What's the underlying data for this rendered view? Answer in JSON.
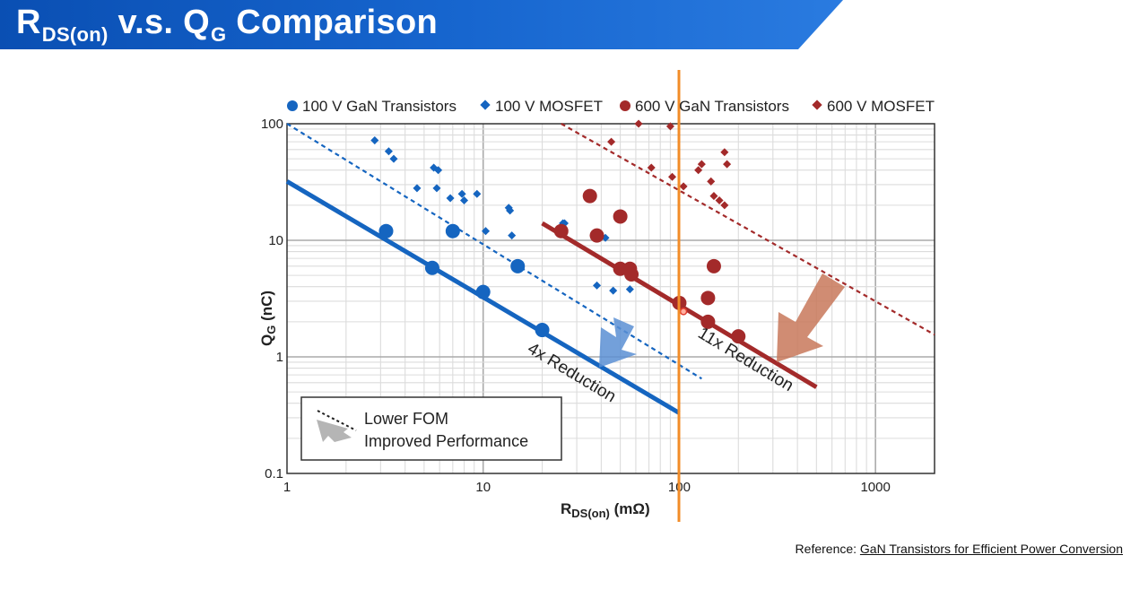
{
  "slide": {
    "title_main": "R",
    "title_sub": "DS(on)",
    "title_rest": " v.s. Q",
    "title_sub2": "G",
    "title_end": " Comparison"
  },
  "reference": {
    "prefix": "Reference: ",
    "link": "GaN Transistors for Efficient Power Conversion"
  },
  "colors": {
    "blue": "#1565c0",
    "red": "#a32a2a",
    "orange": "#f28c28",
    "blue_arrow": "#5b8fd4",
    "red_arrow": "#c8785a"
  },
  "chart_data": {
    "type": "scatter",
    "scale": "log-log",
    "xlim": [
      1,
      2000
    ],
    "ylim": [
      0.1,
      100
    ],
    "xlabel_main": "R",
    "xlabel_sub": "DS(on)",
    "xlabel_unit": " (mΩ)",
    "ylabel_main": "Q",
    "ylabel_sub": "G",
    "ylabel_unit": " (nC)",
    "x_ticks": [
      {
        "value": 1,
        "label": "1"
      },
      {
        "value": 10,
        "label": "10"
      },
      {
        "value": 100,
        "label": "100"
      },
      {
        "value": 1000,
        "label": "1000"
      }
    ],
    "y_ticks": [
      {
        "value": 0.1,
        "label": "0.1"
      },
      {
        "value": 1,
        "label": "1"
      },
      {
        "value": 10,
        "label": "10"
      },
      {
        "value": 100,
        "label": "100"
      }
    ],
    "series": [
      {
        "name": "100 V GaN Transistors",
        "marker": "circle",
        "color": "#1565c0",
        "points": [
          [
            3.2,
            12
          ],
          [
            5.5,
            5.8
          ],
          [
            7,
            12
          ],
          [
            10,
            3.6
          ],
          [
            15,
            6
          ],
          [
            20,
            1.7
          ]
        ]
      },
      {
        "name": "100 V MOSFET",
        "marker": "diamond",
        "color": "#1565c0",
        "points": [
          [
            2.8,
            72
          ],
          [
            3.3,
            58
          ],
          [
            3.5,
            50
          ],
          [
            4.6,
            28
          ],
          [
            5.6,
            42
          ],
          [
            5.9,
            40
          ],
          [
            5.8,
            28
          ],
          [
            6.8,
            23
          ],
          [
            7.8,
            25
          ],
          [
            8,
            22
          ],
          [
            9.3,
            25
          ],
          [
            10.3,
            12
          ],
          [
            13.5,
            19
          ],
          [
            13.7,
            18
          ],
          [
            14,
            11
          ],
          [
            25.5,
            14
          ],
          [
            26,
            14
          ],
          [
            38,
            4.1
          ],
          [
            42,
            10.5
          ],
          [
            46,
            3.7
          ],
          [
            56,
            3.8
          ]
        ]
      },
      {
        "name": "600 V GaN Transistors",
        "marker": "circle",
        "color": "#a32a2a",
        "points": [
          [
            25,
            12
          ],
          [
            35,
            24
          ],
          [
            38,
            11
          ],
          [
            50,
            16
          ],
          [
            50,
            5.7
          ],
          [
            56,
            5.7
          ],
          [
            57,
            5.1
          ],
          [
            100,
            2.9
          ],
          [
            140,
            3.2
          ],
          [
            140,
            2
          ],
          [
            150,
            6
          ],
          [
            200,
            1.5
          ]
        ]
      },
      {
        "name": "600 V MOSFET",
        "marker": "diamond",
        "color": "#a32a2a",
        "points": [
          [
            45,
            70
          ],
          [
            62,
            100
          ],
          [
            72,
            42
          ],
          [
            90,
            95
          ],
          [
            92,
            35
          ],
          [
            105,
            29
          ],
          [
            125,
            40
          ],
          [
            130,
            45
          ],
          [
            145,
            32
          ],
          [
            150,
            24
          ],
          [
            160,
            22
          ],
          [
            170,
            20
          ],
          [
            170,
            57
          ],
          [
            175,
            45
          ]
        ]
      }
    ],
    "fit_lines": [
      {
        "name": "100 V GaN trend",
        "color": "#1565c0",
        "dashed": false,
        "x": [
          1,
          100
        ],
        "y": [
          32,
          0.33
        ]
      },
      {
        "name": "100 V MOSFET trend",
        "color": "#1565c0",
        "dashed": true,
        "x": [
          1,
          130
        ],
        "y": [
          100,
          0.65
        ]
      },
      {
        "name": "600 V GaN trend",
        "color": "#a32a2a",
        "dashed": false,
        "x": [
          20,
          500
        ],
        "y": [
          14,
          0.55
        ]
      },
      {
        "name": "600 V MOSFET trend",
        "color": "#a32a2a",
        "dashed": true,
        "x": [
          25,
          2000
        ],
        "y": [
          100,
          1.55
        ]
      }
    ],
    "reference_line": {
      "x": 100,
      "color": "#f28c28"
    },
    "annotations": {
      "reduction_100v": "4x Reduction",
      "reduction_600v": "11x Reduction",
      "legend_box_line1": "Lower FOM",
      "legend_box_line2": "Improved Performance"
    }
  }
}
